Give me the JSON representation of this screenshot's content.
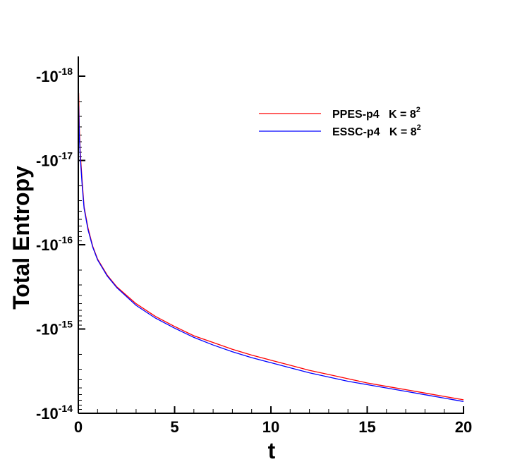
{
  "chart_data": {
    "type": "line",
    "xlabel": "t",
    "ylabel": "Total Entropy",
    "xlim": [
      0,
      20
    ],
    "ylim_log10_magnitude": [
      -18,
      -14
    ],
    "y_scale": "negative log",
    "x_ticks": [
      {
        "value": 0,
        "label": "0"
      },
      {
        "value": 5,
        "label": "5"
      },
      {
        "value": 10,
        "label": "10"
      },
      {
        "value": 15,
        "label": "15"
      },
      {
        "value": 20,
        "label": "20"
      }
    ],
    "y_ticks": [
      {
        "exp": -18,
        "base": "-10",
        "sup": "-18"
      },
      {
        "exp": -17,
        "base": "-10",
        "sup": "-17"
      },
      {
        "exp": -16,
        "base": "-10",
        "sup": "-16"
      },
      {
        "exp": -15,
        "base": "-10",
        "sup": "-15"
      },
      {
        "exp": -14,
        "base": "-10",
        "sup": "-14"
      }
    ],
    "legend_position": "top-right",
    "series": [
      {
        "name": "PPES-p4   K = 8",
        "name_sup": "2",
        "color": "#ff0000",
        "points": [
          [
            0.02,
            -17.8
          ],
          [
            0.05,
            -17.4
          ],
          [
            0.1,
            -17.1
          ],
          [
            0.2,
            -16.75
          ],
          [
            0.3,
            -16.45
          ],
          [
            0.5,
            -16.2
          ],
          [
            0.75,
            -15.98
          ],
          [
            1,
            -15.83
          ],
          [
            1.5,
            -15.64
          ],
          [
            2,
            -15.5
          ],
          [
            3,
            -15.3
          ],
          [
            4,
            -15.15
          ],
          [
            5,
            -15.03
          ],
          [
            6,
            -14.92
          ],
          [
            7,
            -14.84
          ],
          [
            8,
            -14.76
          ],
          [
            9,
            -14.69
          ],
          [
            10,
            -14.63
          ],
          [
            11,
            -14.57
          ],
          [
            12,
            -14.51
          ],
          [
            13,
            -14.46
          ],
          [
            14,
            -14.41
          ],
          [
            15,
            -14.36
          ],
          [
            16,
            -14.32
          ],
          [
            17,
            -14.28
          ],
          [
            18,
            -14.24
          ],
          [
            19,
            -14.2
          ],
          [
            20,
            -14.16
          ]
        ]
      },
      {
        "name": "ESSC-p4   K = 8",
        "name_sup": "2",
        "color": "#0000ff",
        "points": [
          [
            0.02,
            -17.65
          ],
          [
            0.05,
            -17.3
          ],
          [
            0.1,
            -17.05
          ],
          [
            0.2,
            -16.7
          ],
          [
            0.3,
            -16.43
          ],
          [
            0.5,
            -16.18
          ],
          [
            0.75,
            -15.97
          ],
          [
            1,
            -15.82
          ],
          [
            1.5,
            -15.63
          ],
          [
            2,
            -15.49
          ],
          [
            3,
            -15.28
          ],
          [
            4,
            -15.13
          ],
          [
            5,
            -15.01
          ],
          [
            6,
            -14.9
          ],
          [
            7,
            -14.81
          ],
          [
            8,
            -14.73
          ],
          [
            9,
            -14.66
          ],
          [
            10,
            -14.6
          ],
          [
            11,
            -14.54
          ],
          [
            12,
            -14.48
          ],
          [
            13,
            -14.43
          ],
          [
            14,
            -14.38
          ],
          [
            15,
            -14.34
          ],
          [
            16,
            -14.3
          ],
          [
            17,
            -14.26
          ],
          [
            18,
            -14.22
          ],
          [
            19,
            -14.18
          ],
          [
            20,
            -14.14
          ]
        ]
      }
    ]
  }
}
